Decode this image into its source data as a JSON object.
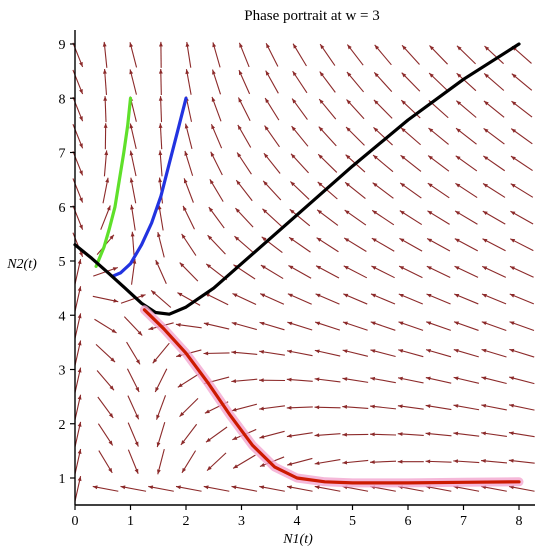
{
  "chart_data": {
    "type": "line",
    "title": "Phase portrait at w = 3",
    "xlabel": "N1(t)",
    "ylabel": "N2(t)",
    "xlim": [
      0,
      8.4
    ],
    "ylim": [
      0.6,
      9.3
    ],
    "xticks": [
      0,
      1,
      2,
      3,
      4,
      5,
      6,
      7,
      8
    ],
    "yticks": [
      1,
      2,
      3,
      4,
      5,
      6,
      7,
      8,
      9
    ],
    "grid": false,
    "colors": {
      "field": "#8c2a2a",
      "glow": "#f2a6cf"
    },
    "series": [
      {
        "color": "#5fe02a",
        "points": [
          [
            1.0,
            8.0
          ],
          [
            0.95,
            7.5
          ],
          [
            0.88,
            7.0
          ],
          [
            0.8,
            6.5
          ],
          [
            0.72,
            6.0
          ],
          [
            0.62,
            5.6
          ],
          [
            0.52,
            5.25
          ],
          [
            0.42,
            5.0
          ],
          [
            0.38,
            4.9
          ]
        ]
      },
      {
        "color": "#2233e0",
        "points": [
          [
            2.0,
            8.0
          ],
          [
            1.85,
            7.4
          ],
          [
            1.7,
            6.8
          ],
          [
            1.55,
            6.2
          ],
          [
            1.38,
            5.7
          ],
          [
            1.2,
            5.3
          ],
          [
            1.0,
            4.95
          ],
          [
            0.82,
            4.78
          ],
          [
            0.68,
            4.72
          ]
        ]
      },
      {
        "color": "#000000",
        "points": [
          [
            0.0,
            5.3
          ],
          [
            0.3,
            5.05
          ],
          [
            0.6,
            4.78
          ],
          [
            0.9,
            4.5
          ],
          [
            1.2,
            4.22
          ],
          [
            1.45,
            4.05
          ],
          [
            1.7,
            4.02
          ],
          [
            2.0,
            4.15
          ],
          [
            2.5,
            4.5
          ],
          [
            3.0,
            4.95
          ],
          [
            4.0,
            5.85
          ],
          [
            5.0,
            6.75
          ],
          [
            6.0,
            7.6
          ],
          [
            7.0,
            8.35
          ],
          [
            8.0,
            9.0
          ]
        ]
      },
      {
        "color": "#cc1a00",
        "points": [
          [
            1.25,
            4.1
          ],
          [
            1.6,
            3.75
          ],
          [
            2.0,
            3.3
          ],
          [
            2.4,
            2.75
          ],
          [
            2.8,
            2.15
          ],
          [
            3.2,
            1.6
          ],
          [
            3.6,
            1.2
          ],
          [
            4.0,
            1.0
          ],
          [
            4.5,
            0.93
          ],
          [
            5.0,
            0.91
          ],
          [
            6.0,
            0.91
          ],
          [
            7.0,
            0.92
          ],
          [
            8.0,
            0.93
          ]
        ]
      }
    ]
  }
}
